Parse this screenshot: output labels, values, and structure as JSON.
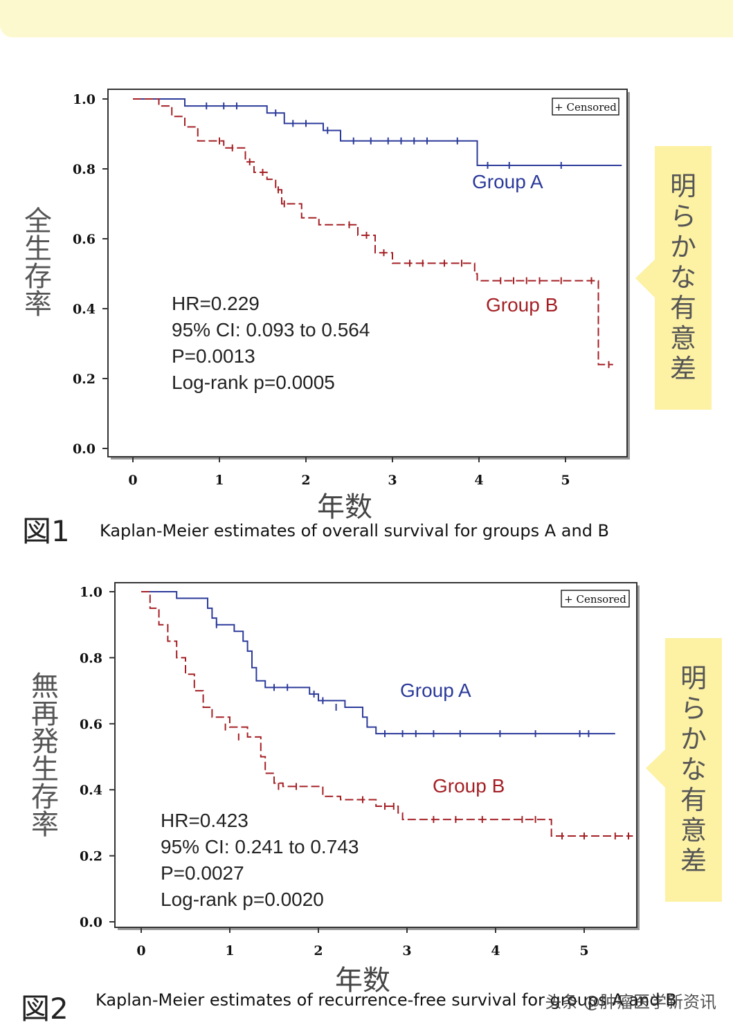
{
  "figures": [
    {
      "fig_label": "図1",
      "caption": "Kaplan-Meier estimates of overall survival for groups A and B",
      "ylabel": "全生存率",
      "xlabel": "年数",
      "legend": "+ Censored",
      "callout": "明らかな有意差",
      "stats": [
        "HR=0.229",
        "95% CI: 0.093 to 0.564",
        "P=0.0013",
        "Log-rank  p=0.0005"
      ]
    },
    {
      "fig_label": "図2",
      "caption": "Kaplan-Meier estimates of recurrence-free survival for groups A and B",
      "ylabel": "無再発生存率",
      "xlabel": "年数",
      "legend": "+ Censored",
      "callout": "明らかな有意差",
      "stats": [
        "HR=0.423",
        "95% CI: 0.241 to 0.743",
        "P=0.0027",
        "Log-rank  p=0.0020"
      ]
    }
  ],
  "watermark": "头条 @肿瘤医学新资讯",
  "colors": {
    "group_a": "#2b3a9a",
    "group_b": "#a41f24",
    "callout": "#fdf1a4",
    "banner": "#fdf9cf"
  },
  "chart_data": [
    {
      "type": "line",
      "title": "",
      "xlabel": "年数",
      "ylabel": "全生存率",
      "xlim": [
        0,
        5.6
      ],
      "ylim": [
        0,
        1
      ],
      "xticks": [
        "0",
        "1",
        "2",
        "3",
        "4",
        "5"
      ],
      "yticks": [
        "0.0",
        "0.2",
        "0.4",
        "0.6",
        "0.8",
        "1.0"
      ],
      "grid": false,
      "legend": "top-right",
      "series": [
        {
          "name": "Group A",
          "step": [
            [
              0,
              1.0
            ],
            [
              0.6,
              0.98
            ],
            [
              1.55,
              0.96
            ],
            [
              1.75,
              0.93
            ],
            [
              2.2,
              0.91
            ],
            [
              2.4,
              0.88
            ],
            [
              3.95,
              0.88
            ],
            [
              3.98,
              0.81
            ],
            [
              5.65,
              0.81
            ]
          ],
          "censored": [
            [
              0.85,
              0.98
            ],
            [
              1.05,
              0.98
            ],
            [
              1.2,
              0.98
            ],
            [
              1.65,
              0.96
            ],
            [
              1.85,
              0.93
            ],
            [
              2.0,
              0.93
            ],
            [
              2.25,
              0.91
            ],
            [
              2.55,
              0.88
            ],
            [
              2.75,
              0.88
            ],
            [
              2.95,
              0.88
            ],
            [
              3.1,
              0.88
            ],
            [
              3.25,
              0.88
            ],
            [
              3.4,
              0.88
            ],
            [
              3.75,
              0.88
            ],
            [
              4.1,
              0.81
            ],
            [
              4.35,
              0.81
            ],
            [
              4.95,
              0.81
            ]
          ]
        },
        {
          "name": "Group B",
          "step": [
            [
              0,
              1.0
            ],
            [
              0.3,
              0.98
            ],
            [
              0.45,
              0.95
            ],
            [
              0.6,
              0.92
            ],
            [
              0.75,
              0.88
            ],
            [
              1.05,
              0.86
            ],
            [
              1.3,
              0.82
            ],
            [
              1.4,
              0.79
            ],
            [
              1.55,
              0.77
            ],
            [
              1.65,
              0.74
            ],
            [
              1.72,
              0.7
            ],
            [
              1.95,
              0.66
            ],
            [
              2.15,
              0.64
            ],
            [
              2.6,
              0.61
            ],
            [
              2.8,
              0.56
            ],
            [
              3.0,
              0.53
            ],
            [
              3.95,
              0.5
            ],
            [
              3.98,
              0.48
            ],
            [
              5.35,
              0.48
            ],
            [
              5.38,
              0.24
            ],
            [
              5.55,
              0.24
            ]
          ],
          "censored": [
            [
              1.0,
              0.88
            ],
            [
              1.15,
              0.86
            ],
            [
              1.35,
              0.82
            ],
            [
              1.5,
              0.79
            ],
            [
              1.68,
              0.74
            ],
            [
              1.75,
              0.7
            ],
            [
              2.5,
              0.64
            ],
            [
              2.7,
              0.61
            ],
            [
              2.9,
              0.56
            ],
            [
              3.2,
              0.53
            ],
            [
              3.35,
              0.53
            ],
            [
              3.6,
              0.53
            ],
            [
              3.8,
              0.53
            ],
            [
              4.25,
              0.48
            ],
            [
              4.4,
              0.48
            ],
            [
              4.55,
              0.48
            ],
            [
              4.7,
              0.48
            ],
            [
              4.95,
              0.48
            ],
            [
              5.3,
              0.48
            ],
            [
              5.5,
              0.24
            ]
          ]
        }
      ]
    },
    {
      "type": "line",
      "title": "",
      "xlabel": "年数",
      "ylabel": "無再発生存率",
      "xlim": [
        0,
        5.6
      ],
      "ylim": [
        0,
        1
      ],
      "xticks": [
        "0",
        "1",
        "2",
        "3",
        "4",
        "5"
      ],
      "yticks": [
        "0.0",
        "0.2",
        "0.4",
        "0.6",
        "0.8",
        "1.0"
      ],
      "grid": false,
      "legend": "top-right",
      "series": [
        {
          "name": "Group A",
          "step": [
            [
              0,
              1.0
            ],
            [
              0.4,
              0.98
            ],
            [
              0.75,
              0.95
            ],
            [
              0.8,
              0.92
            ],
            [
              0.85,
              0.9
            ],
            [
              1.05,
              0.88
            ],
            [
              1.15,
              0.85
            ],
            [
              1.2,
              0.82
            ],
            [
              1.25,
              0.77
            ],
            [
              1.3,
              0.73
            ],
            [
              1.4,
              0.71
            ],
            [
              1.9,
              0.69
            ],
            [
              2.0,
              0.67
            ],
            [
              2.3,
              0.65
            ],
            [
              2.5,
              0.62
            ],
            [
              2.55,
              0.59
            ],
            [
              2.65,
              0.57
            ],
            [
              5.35,
              0.57
            ]
          ],
          "censored": [
            [
              0.85,
              0.9
            ],
            [
              1.5,
              0.71
            ],
            [
              1.65,
              0.71
            ],
            [
              1.95,
              0.69
            ],
            [
              2.05,
              0.67
            ],
            [
              2.2,
              0.65
            ],
            [
              2.75,
              0.57
            ],
            [
              2.95,
              0.57
            ],
            [
              3.1,
              0.57
            ],
            [
              3.3,
              0.57
            ],
            [
              3.6,
              0.57
            ],
            [
              4.05,
              0.57
            ],
            [
              4.45,
              0.57
            ],
            [
              4.95,
              0.57
            ],
            [
              5.05,
              0.57
            ]
          ]
        },
        {
          "name": "Group B",
          "step": [
            [
              0,
              1.0
            ],
            [
              0.1,
              0.95
            ],
            [
              0.2,
              0.9
            ],
            [
              0.3,
              0.85
            ],
            [
              0.4,
              0.8
            ],
            [
              0.5,
              0.75
            ],
            [
              0.6,
              0.7
            ],
            [
              0.7,
              0.65
            ],
            [
              0.8,
              0.62
            ],
            [
              1.0,
              0.59
            ],
            [
              1.2,
              0.56
            ],
            [
              1.35,
              0.5
            ],
            [
              1.4,
              0.45
            ],
            [
              1.5,
              0.42
            ],
            [
              1.6,
              0.41
            ],
            [
              2.05,
              0.38
            ],
            [
              2.25,
              0.37
            ],
            [
              2.65,
              0.35
            ],
            [
              2.9,
              0.33
            ],
            [
              2.95,
              0.31
            ],
            [
              4.6,
              0.31
            ],
            [
              4.63,
              0.26
            ],
            [
              5.55,
              0.26
            ]
          ],
          "censored": [
            [
              0.95,
              0.59
            ],
            [
              1.1,
              0.56
            ],
            [
              1.55,
              0.41
            ],
            [
              1.75,
              0.41
            ],
            [
              2.5,
              0.37
            ],
            [
              2.75,
              0.35
            ],
            [
              2.85,
              0.35
            ],
            [
              3.3,
              0.31
            ],
            [
              3.55,
              0.31
            ],
            [
              3.85,
              0.31
            ],
            [
              4.3,
              0.31
            ],
            [
              4.45,
              0.31
            ],
            [
              4.75,
              0.26
            ],
            [
              5.0,
              0.26
            ],
            [
              5.35,
              0.26
            ],
            [
              5.5,
              0.26
            ]
          ]
        }
      ]
    }
  ]
}
